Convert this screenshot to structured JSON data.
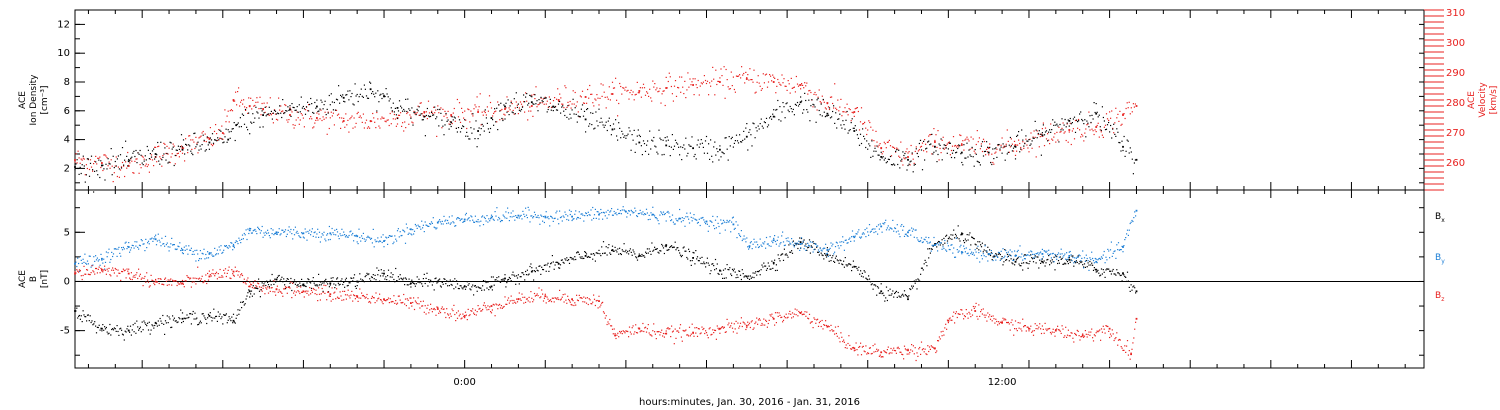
{
  "colors": {
    "density": "#000000",
    "velocity": "#e8211f",
    "bx": "#000000",
    "by": "#1d7fd6",
    "bz": "#e8211f",
    "axis": "#000000"
  },
  "chart_data": [
    {
      "type": "scatter",
      "panel": "top",
      "x_unit": "hours since 2016-01-30 00:00 UTC",
      "xlim": [
        -14.5,
        35.7
      ],
      "x_ticks": [
        {
          "x": 0,
          "label": "0:00"
        },
        {
          "x": 20,
          "label": "12:00"
        }
      ],
      "left_axis": {
        "label_lines": [
          "ACE",
          "Ion Density",
          "[cm⁻³]"
        ],
        "ylim": [
          0.5,
          13.0
        ],
        "ticks": [
          2,
          4,
          6,
          8,
          10,
          12
        ]
      },
      "right_axis": {
        "label_lines": [
          "ACE",
          "Velocity",
          "[km/s]"
        ],
        "ylim": [
          251,
          311
        ],
        "ticks": [
          260,
          270,
          280,
          290,
          300,
          310
        ]
      },
      "series": [
        {
          "name": "Ion Density",
          "axis": "left",
          "color_key": "density",
          "x": [
            -14.5,
            -13.5,
            -12.5,
            -11.5,
            -10.5,
            -9.5,
            -8.8,
            -8.5,
            -7.5,
            -6.5,
            -5.5,
            -4.5,
            -3.5,
            -3.0,
            -2.5,
            -1.5,
            -0.5,
            0.5,
            1.0,
            1.5,
            2.5,
            3.3,
            4.5,
            5.5,
            6.5,
            7.5,
            8.5,
            9.5,
            10.5,
            11.5,
            12.5,
            13.5,
            14.5,
            15.5,
            16.5,
            17.5,
            18.5,
            19.5,
            20.5,
            21.5,
            22.5,
            23.5,
            24.5,
            25.0
          ],
          "y": [
            2.1,
            2.2,
            2.5,
            3.0,
            3.3,
            3.8,
            4.0,
            5.0,
            5.7,
            6.1,
            6.3,
            6.9,
            7.5,
            7.0,
            6.2,
            5.6,
            5.2,
            4.6,
            5.5,
            6.3,
            6.6,
            6.3,
            5.4,
            4.7,
            3.8,
            3.6,
            3.4,
            3.3,
            4.2,
            5.6,
            6.6,
            5.8,
            4.6,
            2.8,
            2.6,
            3.5,
            3.1,
            3.1,
            3.5,
            4.3,
            5.3,
            5.8,
            3.5,
            2.6
          ]
        },
        {
          "name": "Velocity",
          "axis": "right",
          "color_key": "velocity",
          "x": [
            -14.5,
            -13.5,
            -12.5,
            -11.5,
            -10.5,
            -9.5,
            -9.0,
            -8.6,
            -8.0,
            -7.5,
            -6.5,
            -5.5,
            -4.5,
            -3.5,
            -2.5,
            -1.5,
            -0.5,
            0.5,
            1.5,
            2.5,
            3.5,
            4.5,
            5.5,
            6.5,
            7.5,
            8.5,
            9.5,
            10.5,
            11.5,
            12.5,
            13.5,
            14.5,
            15.5,
            16.5,
            17.5,
            18.5,
            19.5,
            20.5,
            21.5,
            22.5,
            23.5,
            24.5,
            25.0
          ],
          "y": [
            261,
            260,
            259,
            262,
            265,
            268,
            270,
            281,
            279,
            278,
            276,
            275,
            274,
            274,
            275,
            277,
            276,
            277,
            278,
            279,
            281,
            282,
            283,
            284,
            285,
            286,
            287,
            288,
            287,
            286,
            280,
            277,
            265,
            262,
            267,
            266,
            265,
            266,
            269,
            271,
            272,
            276,
            279
          ]
        }
      ]
    },
    {
      "type": "scatter",
      "panel": "bottom",
      "x_unit": "hours since 2016-01-30 00:00 UTC",
      "xlim": [
        -14.5,
        35.7
      ],
      "x_ticks": [
        {
          "x": 0,
          "label": "0:00"
        },
        {
          "x": 20,
          "label": "12:00"
        }
      ],
      "xlabel": "hours:minutes, Jan. 30, 2016 - Jan. 31, 2016",
      "left_axis": {
        "label_lines": [
          "ACE",
          "B",
          "[nT]"
        ],
        "ylim": [
          -8.8,
          9.3
        ],
        "ticks": [
          -5,
          0,
          5
        ]
      },
      "zero_line": true,
      "series": [
        {
          "name": "Bx",
          "label_main": "B",
          "label_sub": "x",
          "color_key": "bx",
          "x": [
            -14.5,
            -13.5,
            -12.5,
            -11.5,
            -10.5,
            -9.5,
            -8.6,
            -8.0,
            -7.0,
            -6.0,
            -5.0,
            -4.0,
            -3.0,
            -2.0,
            -1.0,
            0.0,
            1.0,
            1.5,
            2.5,
            3.5,
            4.5,
            5.5,
            6.5,
            7.5,
            8.5,
            9.5,
            10.5,
            11.5,
            12.5,
            13.5,
            14.5,
            15.5,
            16.5,
            17.5,
            18.5,
            19.5,
            20.5,
            21.5,
            22.5,
            23.5,
            24.5,
            25.0
          ],
          "y": [
            -3.0,
            -4.8,
            -5.0,
            -4.2,
            -3.8,
            -3.5,
            -4.0,
            -1.0,
            0.2,
            -0.3,
            -0.2,
            0.0,
            0.8,
            -0.2,
            0.0,
            -0.5,
            -0.5,
            0.3,
            1.0,
            1.8,
            2.6,
            3.2,
            2.6,
            3.7,
            2.4,
            1.1,
            0.5,
            1.9,
            4.0,
            2.7,
            1.5,
            -1.0,
            -1.8,
            3.8,
            4.8,
            2.8,
            2.0,
            2.0,
            2.2,
            1.2,
            0.8,
            -1.0
          ]
        },
        {
          "name": "By",
          "label_main": "B",
          "label_sub": "y",
          "color_key": "by",
          "x": [
            -14.5,
            -13.5,
            -12.5,
            -11.5,
            -10.5,
            -9.5,
            -8.6,
            -8.0,
            -7.0,
            -6.0,
            -5.0,
            -4.0,
            -3.0,
            -2.0,
            -1.0,
            0.0,
            1.0,
            2.0,
            3.0,
            4.0,
            5.0,
            6.0,
            7.0,
            8.0,
            9.0,
            10.0,
            10.6,
            11.5,
            12.5,
            13.5,
            14.5,
            15.5,
            16.5,
            17.5,
            18.5,
            19.5,
            20.5,
            21.5,
            22.5,
            23.5,
            24.5,
            25.0
          ],
          "y": [
            1.8,
            2.3,
            3.5,
            4.3,
            3.2,
            2.8,
            3.6,
            5.2,
            5.0,
            4.9,
            4.9,
            4.6,
            4.1,
            5.3,
            6.0,
            6.3,
            6.5,
            6.7,
            6.6,
            6.6,
            6.8,
            7.1,
            6.8,
            6.4,
            6.1,
            5.8,
            3.6,
            4.2,
            3.8,
            3.2,
            4.5,
            5.6,
            5.0,
            3.7,
            3.0,
            2.8,
            2.6,
            2.8,
            2.6,
            2.0,
            3.5,
            7.2
          ]
        },
        {
          "name": "Bz",
          "label_main": "B",
          "label_sub": "z",
          "color_key": "bz",
          "x": [
            -14.5,
            -13.5,
            -12.5,
            -11.5,
            -10.5,
            -9.5,
            -8.6,
            -8.0,
            -7.0,
            -6.0,
            -5.0,
            -4.0,
            -3.0,
            -2.0,
            -1.0,
            0.0,
            1.0,
            2.0,
            3.0,
            4.0,
            5.0,
            5.6,
            6.5,
            7.5,
            8.5,
            9.5,
            10.5,
            11.5,
            12.5,
            13.5,
            14.5,
            15.5,
            16.5,
            17.5,
            18.0,
            19.0,
            20.0,
            21.0,
            22.0,
            23.0,
            24.0,
            24.8,
            25.0
          ],
          "y": [
            0.8,
            1.2,
            0.8,
            0.0,
            -0.2,
            0.5,
            1.0,
            -0.5,
            -0.8,
            -1.0,
            -1.3,
            -1.5,
            -1.8,
            -2.2,
            -2.8,
            -3.5,
            -2.5,
            -1.8,
            -1.5,
            -1.8,
            -2.0,
            -5.5,
            -4.8,
            -5.3,
            -5.2,
            -4.8,
            -4.5,
            -3.8,
            -3.2,
            -4.6,
            -6.8,
            -7.2,
            -7.0,
            -6.8,
            -4.0,
            -3.0,
            -4.2,
            -4.8,
            -5.0,
            -5.5,
            -4.8,
            -7.4,
            -3.8
          ]
        }
      ]
    }
  ]
}
